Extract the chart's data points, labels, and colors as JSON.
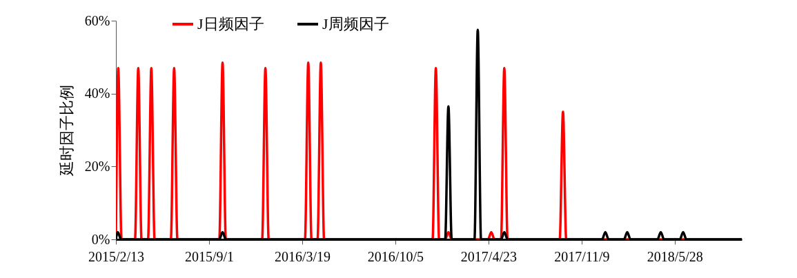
{
  "chart_data": {
    "type": "line",
    "ylabel": "延时因子比例",
    "legend": "top",
    "grid": false,
    "line_style": "solid",
    "marker": "none",
    "xlim": [
      "2015-02-13",
      "2018-10-19"
    ],
    "xticks": [
      {
        "value": "2015-02-13",
        "label": "2015/2/13"
      },
      {
        "value": "2015-09-01",
        "label": "2015/9/1"
      },
      {
        "value": "2016-03-19",
        "label": "2016/3/19"
      },
      {
        "value": "2016-10-05",
        "label": "2016/10/5"
      },
      {
        "value": "2017-04-23",
        "label": "2017/4/23"
      },
      {
        "value": "2017-11-09",
        "label": "2017/11/9"
      },
      {
        "value": "2018-05-28",
        "label": "2018/5/28"
      }
    ],
    "ylim": [
      0,
      60
    ],
    "yticks": [
      {
        "value": 0,
        "label": "0%"
      },
      {
        "value": 20,
        "label": "20%"
      },
      {
        "value": 40,
        "label": "40%"
      },
      {
        "value": 60,
        "label": "60%"
      }
    ],
    "series": [
      {
        "name": "J日频因子",
        "color": "#ff0000",
        "x": [
          "2015-02-13",
          "2015-02-18",
          "2015-02-25",
          "2015-03-26",
          "2015-04-02",
          "2015-04-09",
          "2015-04-23",
          "2015-04-30",
          "2015-05-07",
          "2015-06-11",
          "2015-06-18",
          "2015-06-25",
          "2015-09-23",
          "2015-09-30",
          "2015-10-07",
          "2015-12-24",
          "2015-12-31",
          "2016-01-07",
          "2016-03-25",
          "2016-04-01",
          "2016-04-08",
          "2016-04-21",
          "2016-04-28",
          "2016-05-05",
          "2016-12-24",
          "2016-12-31",
          "2017-01-07",
          "2017-01-20",
          "2017-01-27",
          "2017-02-03",
          "2017-04-22",
          "2017-04-29",
          "2017-05-06",
          "2017-05-20",
          "2017-05-27",
          "2017-06-03",
          "2017-09-23",
          "2017-09-30",
          "2017-10-07",
          "2018-10-19"
        ],
        "values": [
          0,
          47,
          0,
          0,
          47,
          0,
          0,
          47,
          0,
          0,
          47,
          0,
          0,
          48.5,
          0,
          0,
          47,
          0,
          0,
          48.5,
          0,
          0,
          48.5,
          0,
          0,
          47,
          0,
          0,
          2,
          0,
          0,
          2,
          0,
          0,
          47,
          0,
          0,
          35,
          0,
          0
        ]
      },
      {
        "name": "J周频因子",
        "color": "#000000",
        "x": [
          "2015-02-13",
          "2015-02-17",
          "2015-02-24",
          "2015-09-23",
          "2015-09-30",
          "2015-10-07",
          "2017-01-20",
          "2017-01-27",
          "2017-02-03",
          "2017-03-24",
          "2017-03-31",
          "2017-04-07",
          "2017-05-20",
          "2017-05-27",
          "2017-06-03",
          "2017-12-23",
          "2017-12-30",
          "2018-01-06",
          "2018-02-08",
          "2018-02-15",
          "2018-02-22",
          "2018-04-21",
          "2018-04-28",
          "2018-05-05",
          "2018-06-08",
          "2018-06-15",
          "2018-06-22",
          "2018-10-19"
        ],
        "values": [
          0,
          2,
          0,
          0,
          2,
          0,
          0,
          36.5,
          0,
          0,
          57.5,
          0,
          0,
          2,
          0,
          0,
          2,
          0,
          0,
          2,
          0,
          0,
          2,
          0,
          0,
          2,
          0,
          0
        ]
      }
    ]
  }
}
